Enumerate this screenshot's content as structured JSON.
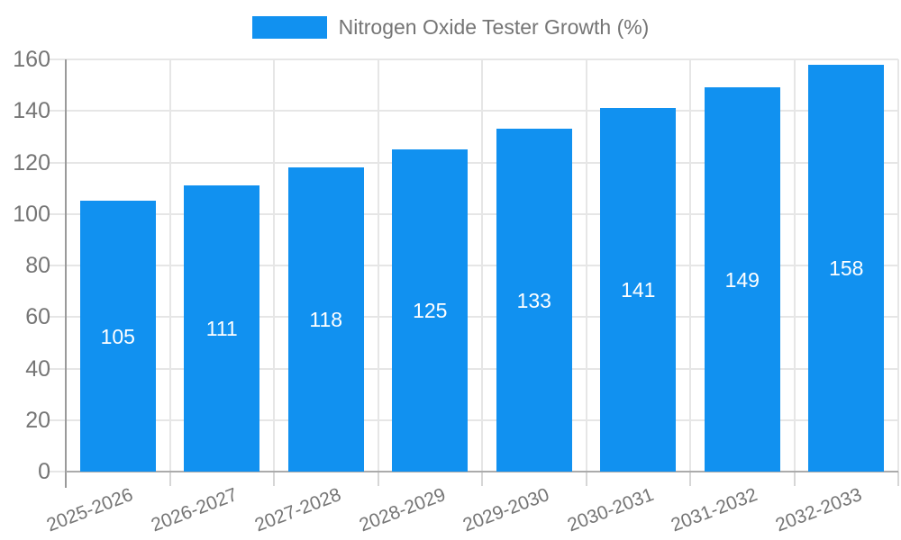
{
  "legend": {
    "label": "Nitrogen Oxide Tester Growth (%)"
  },
  "chart_data": {
    "type": "bar",
    "title": "",
    "categories": [
      "2025-2026",
      "2026-2027",
      "2027-2028",
      "2028-2029",
      "2029-2030",
      "2030-2031",
      "2031-2032",
      "2032-2033"
    ],
    "series": [
      {
        "name": "Nitrogen Oxide Tester Growth (%)",
        "values": [
          105,
          111,
          118,
          125,
          133,
          141,
          149,
          158
        ],
        "color": "#1191F0"
      }
    ],
    "xlabel": "",
    "ylabel": "",
    "ylim": [
      0,
      160
    ],
    "yticks": [
      0,
      20,
      40,
      60,
      80,
      100,
      120,
      140,
      160
    ],
    "grid": true,
    "legend_position": "top-center",
    "value_labels": {
      "position": "center",
      "color": "#FFFFFF"
    },
    "x_tick_rotation_deg": -21
  },
  "colors": {
    "bar": "#1191F0",
    "axis_line": "#9A9A9A",
    "baseline": "#ABABAB",
    "gridline": "#E6E6E6",
    "tick": "#D6D6D6",
    "label_text": "#757575",
    "background": "#FFFFFF"
  }
}
